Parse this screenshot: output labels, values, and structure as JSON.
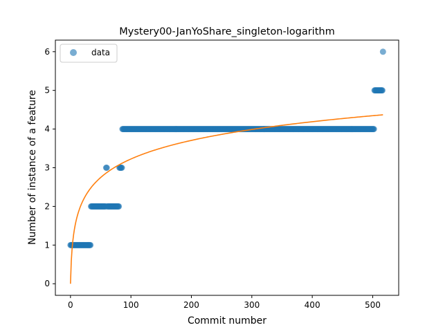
{
  "chart_data": {
    "type": "scatter",
    "title": "Mystery00-JanYoShare_singleton-logarithm",
    "xlabel": "Commit number",
    "ylabel": "Number of instance of a feature",
    "xlim": [
      -25,
      543
    ],
    "ylim": [
      -0.3,
      6.3
    ],
    "xticks": [
      "0",
      "100",
      "200",
      "300",
      "400",
      "500"
    ],
    "yticks": [
      "0",
      "1",
      "2",
      "3",
      "4",
      "5",
      "6"
    ],
    "grid": false,
    "legend": {
      "position": "top-left",
      "entries": [
        "data"
      ]
    },
    "colors": {
      "data": "#1f77b4",
      "fit": "#ff7f0e"
    },
    "series": [
      {
        "name": "data",
        "kind": "scatter",
        "segments": [
          {
            "x_start": 0,
            "x_end": 33,
            "y": 1
          },
          {
            "x_start": 34,
            "x_end": 58,
            "y": 2
          },
          {
            "x_start": 59,
            "x_end": 60,
            "y": 3
          },
          {
            "x_start": 61,
            "x_end": 80,
            "y": 2
          },
          {
            "x_start": 81,
            "x_end": 85,
            "y": 3
          },
          {
            "x_start": 86,
            "x_end": 502,
            "y": 4
          },
          {
            "x_start": 503,
            "x_end": 516,
            "y": 5
          },
          {
            "x_start": 517,
            "x_end": 517,
            "y": 6
          }
        ]
      },
      {
        "name": "fit",
        "kind": "line",
        "model": "logarithm",
        "a": 0.699,
        "b": 0,
        "x_range": [
          0,
          517
        ]
      }
    ]
  }
}
